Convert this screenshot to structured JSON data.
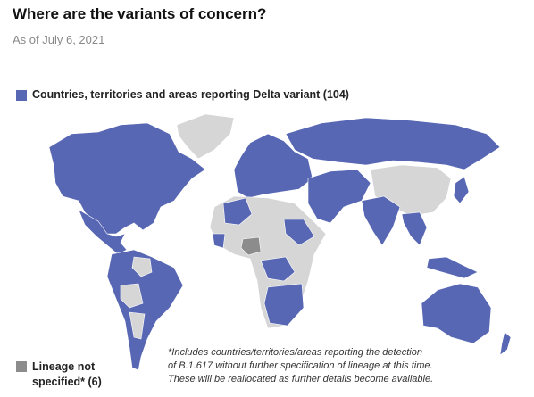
{
  "header": {
    "title": "Where are the variants of concern?",
    "subtitle": "As of July 6, 2021"
  },
  "legend": [
    {
      "label": "Countries, territories and areas reporting Delta variant (104)",
      "color": "#5867b4"
    },
    {
      "label": "Lineage not specified* (6)",
      "color": "#8c8c8c"
    }
  ],
  "footnote": [
    "*Includes countries/territories/areas reporting the detection",
    "of B.1.617 without further specification of lineage at this time.",
    "These will be reallocated as further details become available."
  ]
}
